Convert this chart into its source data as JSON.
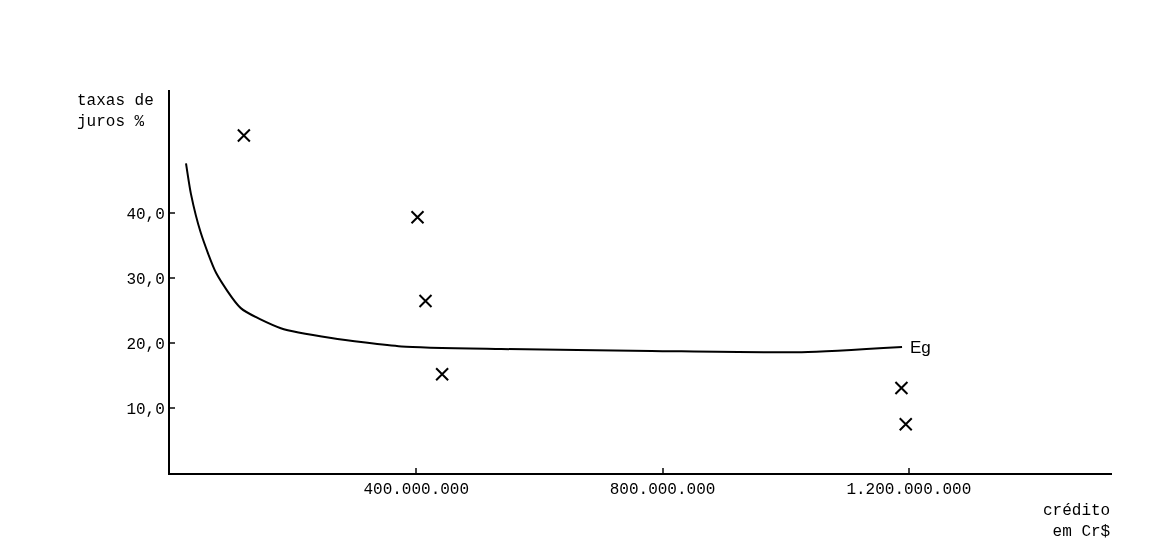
{
  "chart_data": {
    "type": "scatter",
    "xlabel": "crédito\nem Cr$",
    "ylabel": "taxas de\njuros %",
    "xlim": [
      0,
      1530000000
    ],
    "ylim": [
      0,
      59
    ],
    "xticks": [
      {
        "value": 400000000,
        "label": "400.000.000"
      },
      {
        "value": 800000000,
        "label": "800.000.000"
      },
      {
        "value": 1200000000,
        "label": "1.200.000.000"
      }
    ],
    "yticks": [
      {
        "value": 10,
        "label": "10,0"
      },
      {
        "value": 20,
        "label": "20,0"
      },
      {
        "value": 30,
        "label": "30,0"
      },
      {
        "value": 40,
        "label": "40,0"
      }
    ],
    "legend": false,
    "marker": "cross",
    "series": [
      {
        "type": "line",
        "marker": "none",
        "name": "Eg",
        "color": "#000000",
        "x": [
          26000000,
          34000000,
          50000000,
          75000000,
          115000000,
          180000000,
          262000000,
          376000000,
          538000000,
          782000000,
          1026000000,
          1189000000
        ],
        "values": [
          47.7,
          43,
          37,
          30.8,
          25.4,
          22.3,
          20.8,
          19.5,
          19.1,
          18.8,
          18.6,
          19.4
        ]
      },
      {
        "color": "#000000",
        "x": [
          120000000,
          402000000,
          415000000,
          442000000,
          1188000000,
          1195000000
        ],
        "values": [
          52,
          39.4,
          26.5,
          15.2,
          13.1,
          7.5
        ]
      }
    ]
  }
}
